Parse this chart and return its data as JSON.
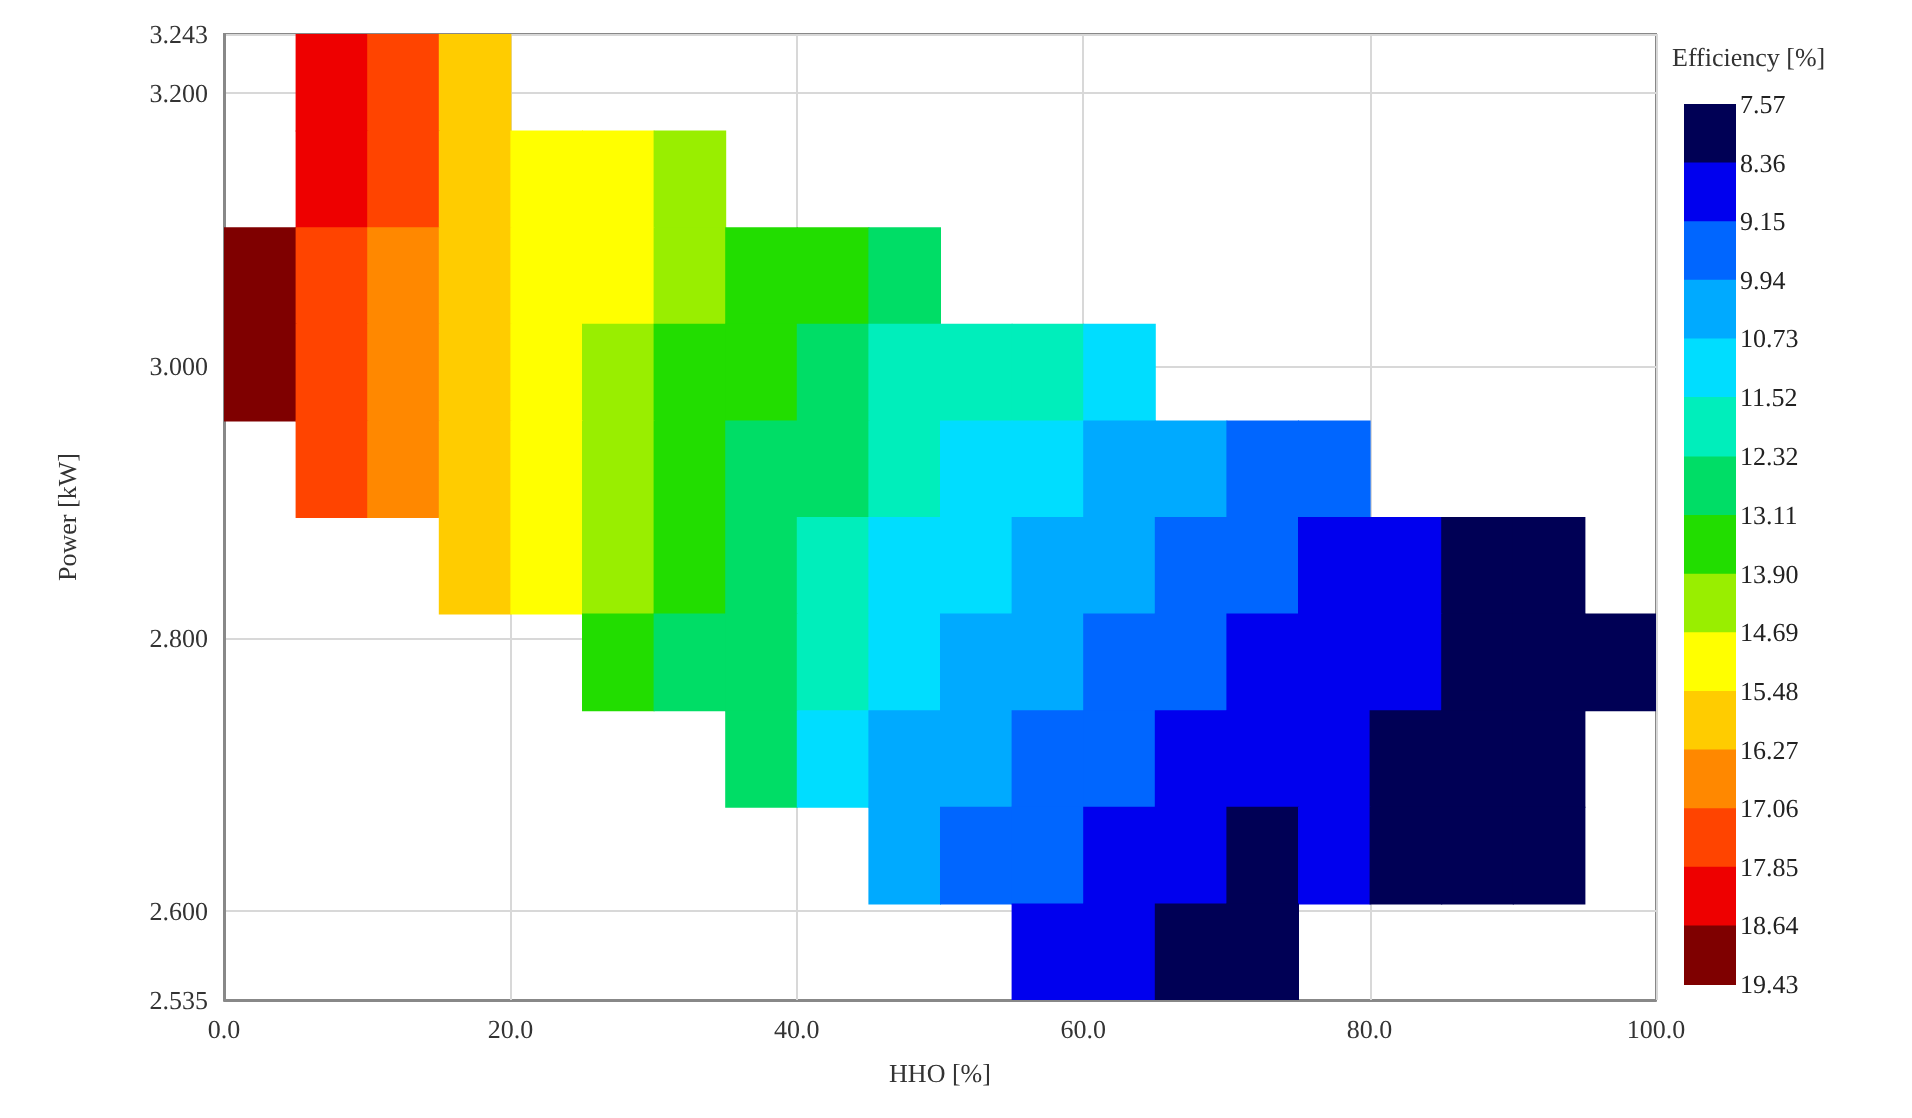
{
  "chart_data": {
    "type": "heatmap",
    "xlabel": "HHO [%]",
    "ylabel": "Power [kW]",
    "clabel": "Efficiency [%]",
    "xlim": [
      0,
      100
    ],
    "ylim": [
      2.535,
      3.243
    ],
    "xticks": [
      {
        "value": 0,
        "label": "0.0"
      },
      {
        "value": 20,
        "label": "20.0"
      },
      {
        "value": 40,
        "label": "40.0"
      },
      {
        "value": 60,
        "label": "60.0"
      },
      {
        "value": 80,
        "label": "80.0"
      },
      {
        "value": 100,
        "label": "100.0"
      }
    ],
    "yticks": [
      {
        "value": 2.535,
        "label": "2.535"
      },
      {
        "value": 2.6,
        "label": "2.600"
      },
      {
        "value": 2.8,
        "label": "2.800"
      },
      {
        "value": 3.0,
        "label": "3.000"
      },
      {
        "value": 3.2,
        "label": "3.200"
      },
      {
        "value": 3.243,
        "label": "3.243"
      }
    ],
    "clim": [
      7.57,
      19.43
    ],
    "cticks": [
      7.57,
      8.36,
      9.15,
      9.94,
      10.73,
      11.52,
      12.32,
      13.11,
      {
        "value": 13.9,
        "label": "13.90"
      },
      14.69,
      15.48,
      16.27,
      17.06,
      17.85,
      18.64,
      19.43
    ],
    "grid": true,
    "cells": [
      [
        null,
        18.1,
        17.2,
        16.2,
        null,
        null,
        null,
        null,
        null,
        null,
        null,
        null,
        null,
        null,
        null,
        null,
        null,
        null,
        null,
        null
      ],
      [
        null,
        18.0,
        17.1,
        16.1,
        15.4,
        14.9,
        14.2,
        null,
        null,
        null,
        null,
        null,
        null,
        null,
        null,
        null,
        null,
        null,
        null,
        null
      ],
      [
        18.9,
        17.8,
        16.9,
        15.9,
        15.2,
        14.7,
        14.0,
        13.5,
        13.3,
        12.7,
        null,
        null,
        null,
        null,
        null,
        null,
        null,
        null,
        null,
        null
      ],
      [
        18.8,
        17.7,
        16.8,
        15.8,
        15.1,
        14.5,
        13.8,
        13.3,
        12.9,
        12.3,
        11.9,
        11.6,
        11.1,
        null,
        null,
        null,
        null,
        null,
        null,
        null
      ],
      [
        null,
        17.5,
        16.6,
        15.6,
        14.9,
        14.3,
        13.6,
        13.1,
        12.4,
        11.8,
        11.4,
        11.1,
        10.6,
        10.1,
        9.6,
        9.3,
        null,
        null,
        null,
        null
      ],
      [
        null,
        null,
        null,
        15.5,
        14.8,
        14.1,
        13.4,
        12.9,
        12.0,
        11.4,
        11.0,
        10.7,
        10.2,
        9.7,
        9.2,
        9.1,
        8.7,
        8.1,
        7.7,
        null
      ],
      [
        null,
        null,
        null,
        null,
        null,
        13.8,
        13.1,
        12.6,
        11.6,
        11.0,
        10.6,
        10.3,
        9.8,
        9.3,
        8.8,
        8.8,
        8.4,
        7.8,
        7.6,
        7.6
      ],
      [
        null,
        null,
        null,
        null,
        null,
        null,
        null,
        12.4,
        11.2,
        10.6,
        10.2,
        9.9,
        9.4,
        8.9,
        8.4,
        8.6,
        8.2,
        7.6,
        7.6,
        null
      ],
      [
        null,
        null,
        null,
        null,
        null,
        null,
        null,
        null,
        null,
        10.1,
        9.7,
        9.4,
        8.9,
        8.4,
        7.9,
        8.4,
        8.0,
        7.6,
        7.6,
        null
      ],
      [
        null,
        null,
        null,
        null,
        null,
        null,
        null,
        null,
        null,
        null,
        null,
        9.0,
        8.5,
        8.0,
        7.6,
        null,
        null,
        null,
        null,
        null
      ]
    ]
  }
}
